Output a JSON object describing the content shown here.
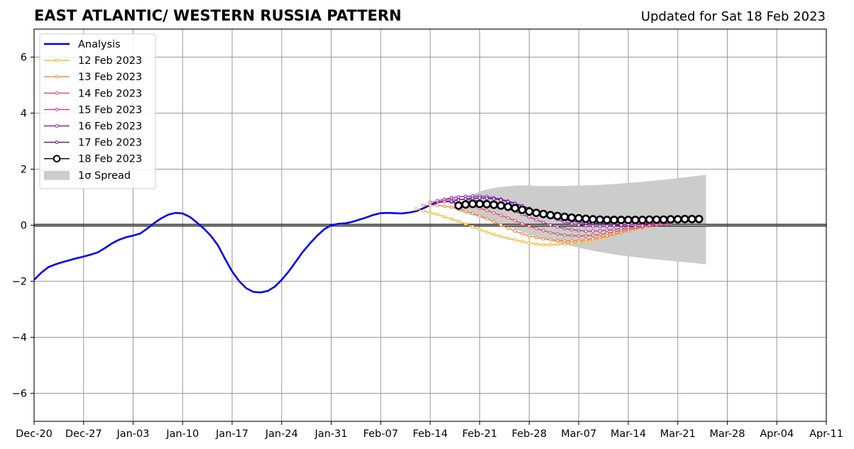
{
  "chart_data": {
    "type": "line",
    "title": "EAST ATLANTIC/ WESTERN RUSSIA PATTERN",
    "subtitle": "Updated for Sat 18 Feb 2023",
    "xlabel": "",
    "ylabel": "",
    "xlim": [
      "2022-12-20",
      "2023-04-11"
    ],
    "ylim": [
      -7,
      7
    ],
    "grid": true,
    "legend_position": "top-left",
    "x_tick_labels": [
      "Dec-20",
      "Dec-27",
      "Jan-03",
      "Jan-10",
      "Jan-17",
      "Jan-24",
      "Jan-31",
      "Feb-07",
      "Feb-14",
      "Feb-21",
      "Feb-28",
      "Mar-07",
      "Mar-14",
      "Mar-21",
      "Mar-28",
      "Apr-04",
      "Apr-11"
    ],
    "y_ticks": [
      6,
      4,
      2,
      0,
      -2,
      -4,
      -6
    ],
    "y_tick_labels": [
      "6",
      "4",
      "2",
      "0",
      "−2",
      "−4",
      "−6"
    ],
    "analysis": {
      "name": "Analysis",
      "color": "#0000ee",
      "start_date": "2022-12-20",
      "values": [
        -1.95,
        -1.7,
        -1.5,
        -1.4,
        -1.32,
        -1.25,
        -1.18,
        -1.12,
        -1.05,
        -0.97,
        -0.82,
        -0.65,
        -0.52,
        -0.43,
        -0.37,
        -0.3,
        -0.12,
        0.08,
        0.25,
        0.38,
        0.44,
        0.42,
        0.3,
        0.1,
        -0.12,
        -0.38,
        -0.72,
        -1.2,
        -1.65,
        -2.0,
        -2.25,
        -2.38,
        -2.4,
        -2.35,
        -2.2,
        -1.95,
        -1.65,
        -1.3,
        -0.95,
        -0.65,
        -0.38,
        -0.15,
        0.0,
        0.05,
        0.07,
        0.12,
        0.2,
        0.28,
        0.37,
        0.43,
        0.44,
        0.43,
        0.42,
        0.45,
        0.5,
        0.6,
        0.72,
        0.82,
        0.85,
        0.84,
        0.76
      ]
    },
    "forecasts": [
      {
        "name": "12 Feb 2023",
        "color": "#ffb020",
        "start_date": "2023-02-12",
        "values": [
          0.58,
          0.51,
          0.45,
          0.38,
          0.3,
          0.22,
          0.14,
          0.04,
          -0.06,
          -0.16,
          -0.25,
          -0.33,
          -0.4,
          -0.47,
          -0.53,
          -0.58,
          -0.64,
          -0.68,
          -0.7,
          -0.7,
          -0.69,
          -0.67,
          -0.65,
          -0.62,
          -0.58,
          -0.53,
          -0.47,
          -0.41,
          -0.34,
          -0.27,
          -0.2,
          -0.14,
          -0.08,
          -0.03,
          0.02,
          0.05
        ]
      },
      {
        "name": "13 Feb 2023",
        "color": "#f4823c",
        "start_date": "2023-02-13",
        "values": [
          0.7,
          0.72,
          0.71,
          0.68,
          0.64,
          0.58,
          0.5,
          0.42,
          0.33,
          0.23,
          0.12,
          0.01,
          -0.1,
          -0.21,
          -0.3,
          -0.38,
          -0.44,
          -0.49,
          -0.52,
          -0.55,
          -0.56,
          -0.56,
          -0.55,
          -0.52,
          -0.48,
          -0.43,
          -0.38,
          -0.32,
          -0.26,
          -0.2,
          -0.14,
          -0.08,
          -0.03,
          0.01,
          0.04,
          0.06
        ]
      },
      {
        "name": "14 Feb 2023",
        "color": "#e0505a",
        "start_date": "2023-02-14",
        "values": [
          0.82,
          0.85,
          0.84,
          0.82,
          0.79,
          0.74,
          0.68,
          0.61,
          0.53,
          0.44,
          0.35,
          0.26,
          0.16,
          0.06,
          -0.04,
          -0.12,
          -0.19,
          -0.26,
          -0.31,
          -0.35,
          -0.37,
          -0.38,
          -0.38,
          -0.36,
          -0.33,
          -0.29,
          -0.24,
          -0.19,
          -0.14,
          -0.09,
          -0.05,
          -0.01,
          0.02,
          0.04,
          0.06
        ]
      },
      {
        "name": "15 Feb 2023",
        "color": "#c43c8c",
        "start_date": "2023-02-15",
        "values": [
          0.88,
          0.92,
          0.93,
          0.93,
          0.92,
          0.9,
          0.87,
          0.82,
          0.76,
          0.68,
          0.59,
          0.49,
          0.39,
          0.29,
          0.19,
          0.1,
          0.01,
          -0.06,
          -0.12,
          -0.16,
          -0.19,
          -0.21,
          -0.21,
          -0.2,
          -0.18,
          -0.15,
          -0.12,
          -0.08,
          -0.05,
          -0.02,
          0.01,
          0.03,
          0.05,
          0.06
        ]
      },
      {
        "name": "16 Feb 2023",
        "color": "#9c1fb4",
        "start_date": "2023-02-16",
        "values": [
          0.92,
          0.98,
          1.01,
          1.03,
          1.04,
          1.04,
          1.02,
          0.98,
          0.93,
          0.86,
          0.78,
          0.69,
          0.59,
          0.49,
          0.39,
          0.29,
          0.2,
          0.12,
          0.06,
          0.01,
          -0.02,
          -0.04,
          -0.04,
          -0.03,
          -0.01,
          0.01,
          0.03,
          0.05,
          0.06,
          0.07,
          0.08,
          0.08,
          0.08
        ]
      },
      {
        "name": "17 Feb 2023",
        "color": "#5a0fa0",
        "start_date": "2023-02-17",
        "values": [
          0.85,
          0.9,
          0.94,
          0.96,
          0.97,
          0.96,
          0.94,
          0.9,
          0.84,
          0.77,
          0.69,
          0.6,
          0.51,
          0.42,
          0.33,
          0.26,
          0.2,
          0.15,
          0.11,
          0.08,
          0.07,
          0.07,
          0.08,
          0.09,
          0.1,
          0.11,
          0.12,
          0.13,
          0.14,
          0.14,
          0.15,
          0.15,
          0.15,
          0.15
        ]
      }
    ],
    "current_forecast": {
      "name": "18 Feb 2023",
      "color": "#000000",
      "marker_fill": "#ffffff",
      "start_date": "2023-02-18",
      "values": [
        0.7,
        0.74,
        0.76,
        0.76,
        0.75,
        0.73,
        0.7,
        0.66,
        0.61,
        0.55,
        0.49,
        0.44,
        0.4,
        0.36,
        0.33,
        0.3,
        0.27,
        0.25,
        0.23,
        0.21,
        0.2,
        0.19,
        0.19,
        0.19,
        0.19,
        0.19,
        0.19,
        0.2,
        0.2,
        0.2,
        0.21,
        0.21,
        0.22,
        0.22,
        0.22
      ]
    },
    "spread": {
      "name": "1σ Spread",
      "color": "#cccccc",
      "start_date": "2023-02-18",
      "upper": [
        0.75,
        0.95,
        1.1,
        1.2,
        1.28,
        1.33,
        1.37,
        1.39,
        1.41,
        1.42,
        1.42,
        1.4,
        1.4,
        1.4,
        1.4,
        1.4,
        1.41,
        1.41,
        1.42,
        1.43,
        1.44,
        1.46,
        1.47,
        1.49,
        1.51,
        1.53,
        1.55,
        1.57,
        1.6,
        1.62,
        1.65,
        1.68,
        1.71,
        1.74,
        1.77,
        1.8
      ],
      "lower": [
        0.5,
        0.42,
        0.35,
        0.28,
        0.2,
        0.12,
        0.04,
        -0.05,
        -0.14,
        -0.23,
        -0.32,
        -0.41,
        -0.48,
        -0.55,
        -0.62,
        -0.68,
        -0.74,
        -0.8,
        -0.86,
        -0.91,
        -0.96,
        -1.0,
        -1.04,
        -1.08,
        -1.11,
        -1.14,
        -1.17,
        -1.2,
        -1.22,
        -1.25,
        -1.27,
        -1.3,
        -1.32,
        -1.34,
        -1.37,
        -1.4
      ]
    }
  }
}
